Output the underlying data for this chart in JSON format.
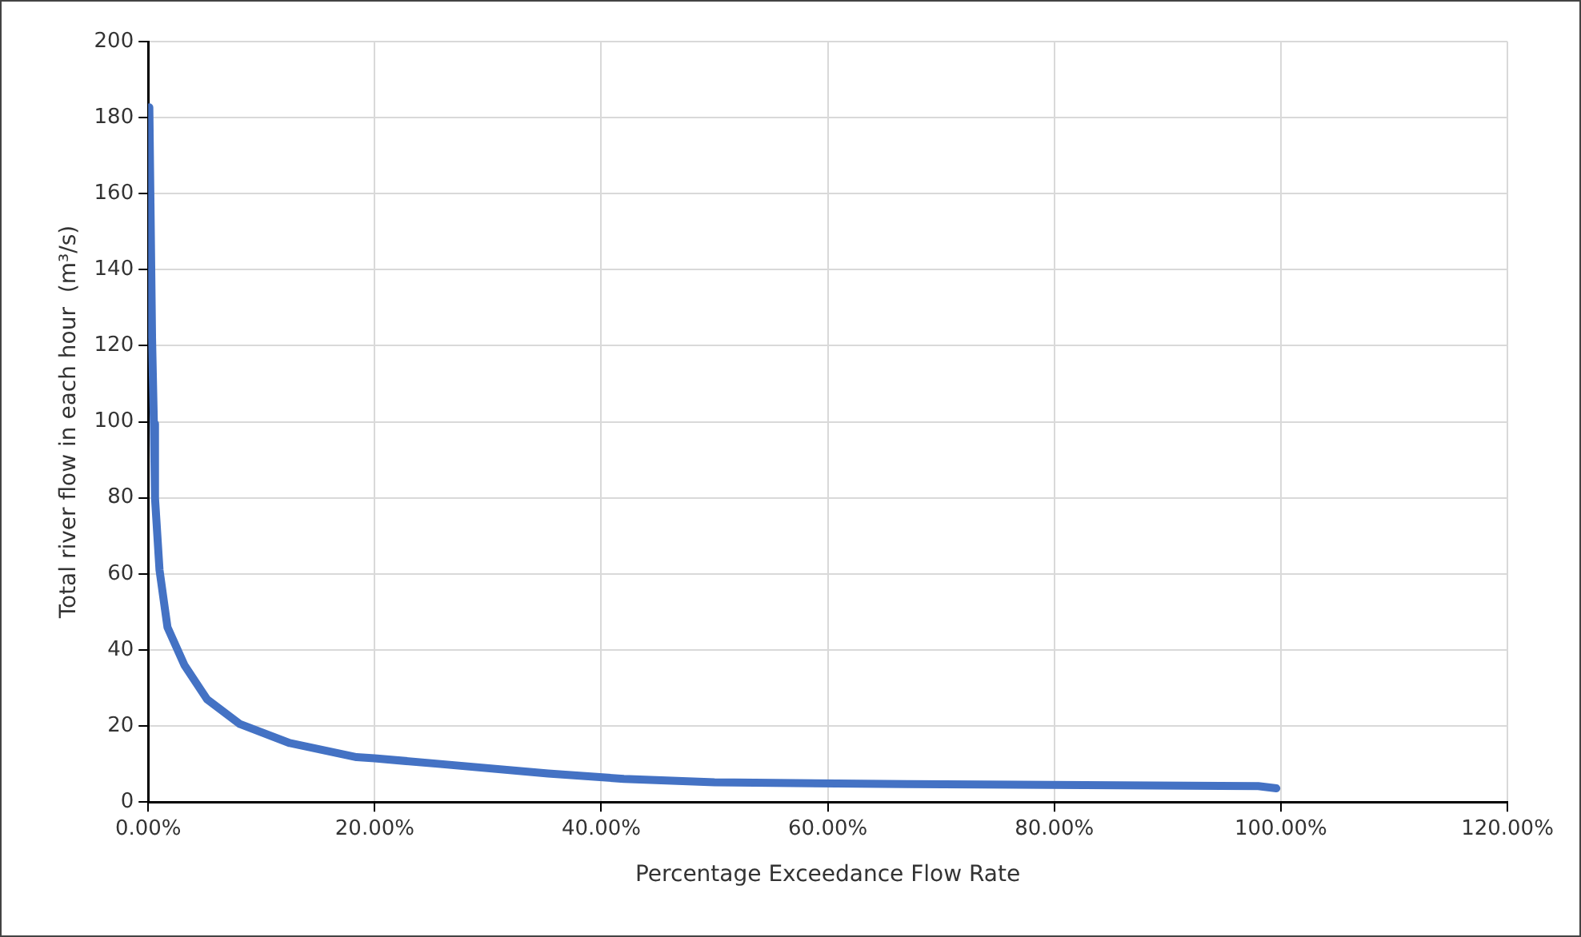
{
  "chart_data": {
    "type": "line",
    "xlabel": "Percentage Exceedance Flow Rate",
    "ylabel": "Total river flow in each hour  (m³/s)",
    "series": [
      {
        "color": "#4472c4",
        "x": [
          0.1,
          0.34,
          0.5,
          0.6,
          1,
          1.7,
          3.2,
          5.2,
          8.1,
          12.5,
          18.4,
          20,
          25.8,
          35.3,
          42,
          50,
          67,
          98,
          99.6
        ],
        "values": [
          182.7,
          122,
          99.5,
          80,
          61,
          46,
          36,
          27,
          20.5,
          15.5,
          11.8,
          11.5,
          10,
          7.5,
          6.1,
          5.2,
          4.7,
          4.2,
          3.6
        ]
      }
    ],
    "xlim": [
      0,
      120
    ],
    "xticks": [
      {
        "value": 0,
        "label": "0.00%"
      },
      {
        "value": 20,
        "label": "20.00%"
      },
      {
        "value": 40,
        "label": "40.00%"
      },
      {
        "value": 60,
        "label": "60.00%"
      },
      {
        "value": 80,
        "label": "80.00%"
      },
      {
        "value": 100,
        "label": "100.00%"
      },
      {
        "value": 120,
        "label": "120.00%"
      }
    ],
    "ylim": [
      0,
      200
    ],
    "yticks": [
      0,
      20,
      40,
      60,
      80,
      100,
      120,
      140,
      160,
      180,
      200
    ],
    "grid": true,
    "legend": false,
    "marker": "none",
    "line_style": "solid"
  }
}
